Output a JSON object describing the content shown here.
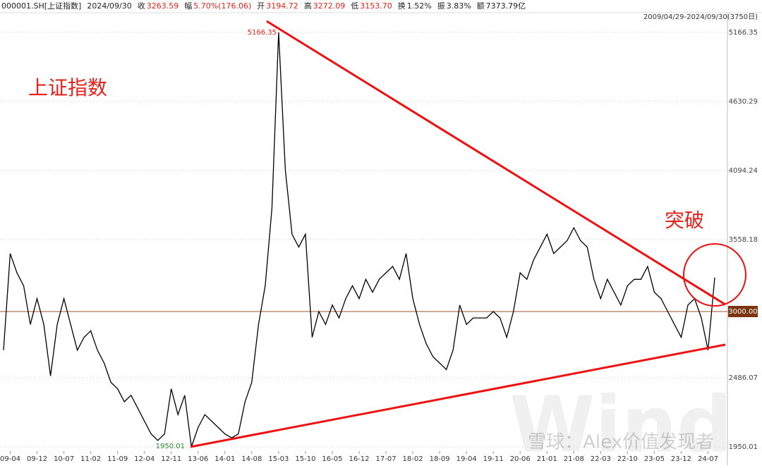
{
  "header": {
    "symbol": "000001.SH[上证指数]",
    "date": "2024/09/30",
    "items": [
      {
        "label": "收",
        "value": "3263.59"
      },
      {
        "label": "幅",
        "value": "5.70%(176.06)"
      },
      {
        "label": "开",
        "value": "3194.72"
      },
      {
        "label": "高",
        "value": "3272.09"
      },
      {
        "label": "低",
        "value": "3153.70"
      },
      {
        "label": "换",
        "value": "1.52%"
      },
      {
        "label": "振",
        "value": "3.83%"
      },
      {
        "label": "额",
        "value": "7373.79亿"
      }
    ],
    "range": "2009/04/29-2024/09/30(3750日)"
  },
  "chart_data": {
    "type": "line",
    "title": "上证指数",
    "annotation": "突破",
    "peak_label": "5166.35",
    "low_label": "1950.01",
    "ref_line": {
      "value": 3000,
      "label": "3000.00"
    },
    "color": "#000000",
    "categories": [
      null,
      "09-04",
      null,
      null,
      null,
      "09-12",
      null,
      null,
      null,
      "10-07",
      null,
      null,
      null,
      "11-02",
      null,
      null,
      null,
      "11-09",
      null,
      null,
      null,
      "12-04",
      null,
      null,
      null,
      "12-11",
      null,
      null,
      null,
      "13-06",
      null,
      null,
      null,
      "14-01",
      null,
      null,
      null,
      "14-08",
      null,
      null,
      null,
      "15-03",
      null,
      null,
      null,
      "15-10",
      null,
      null,
      null,
      "16-05",
      null,
      null,
      null,
      "16-12",
      null,
      null,
      null,
      "17-07",
      null,
      null,
      null,
      "18-02",
      null,
      null,
      null,
      "18-09",
      null,
      null,
      null,
      "19-04",
      null,
      null,
      null,
      "19-11",
      null,
      null,
      null,
      "20-06",
      null,
      null,
      null,
      "21-01",
      null,
      null,
      null,
      "21-08",
      null,
      null,
      null,
      "22-03",
      null,
      null,
      null,
      "22-10",
      null,
      null,
      null,
      "23-05",
      null,
      null,
      null,
      "23-12",
      null,
      null,
      null,
      "24-07",
      null
    ],
    "values": [
      2700,
      3450,
      3300,
      3200,
      2900,
      3100,
      2900,
      2500,
      2900,
      3100,
      2900,
      2700,
      2800,
      2850,
      2700,
      2600,
      2450,
      2400,
      2300,
      2350,
      2250,
      2150,
      2050,
      2000,
      2050,
      2400,
      2200,
      2350,
      1950.01,
      2100,
      2200,
      2150,
      2100,
      2050,
      2020,
      2050,
      2300,
      2450,
      2900,
      3200,
      3800,
      5166.35,
      4100,
      3600,
      3500,
      3600,
      2800,
      3000,
      2900,
      3050,
      2950,
      3100,
      3200,
      3100,
      3250,
      3150,
      3250,
      3300,
      3350,
      3250,
      3450,
      3100,
      2900,
      2750,
      2650,
      2600,
      2550,
      2700,
      3050,
      2900,
      2950,
      2950,
      2950,
      3000,
      2950,
      2800,
      3000,
      3300,
      3250,
      3400,
      3500,
      3600,
      3450,
      3500,
      3550,
      3650,
      3550,
      3500,
      3250,
      3100,
      3250,
      3150,
      3050,
      3200,
      3250,
      3250,
      3350,
      3150,
      3100,
      3000,
      2900,
      2800,
      3050,
      3100,
      2950,
      2700,
      3263.59
    ],
    "ylim": [
      1917,
      5319
    ],
    "yticks": [
      5166.35,
      4630.29,
      4094.24,
      3558.18,
      2486.07,
      1950.01
    ],
    "grid": true,
    "watermarks": [
      "Wind",
      "雪球：Alex价值发现者"
    ]
  }
}
